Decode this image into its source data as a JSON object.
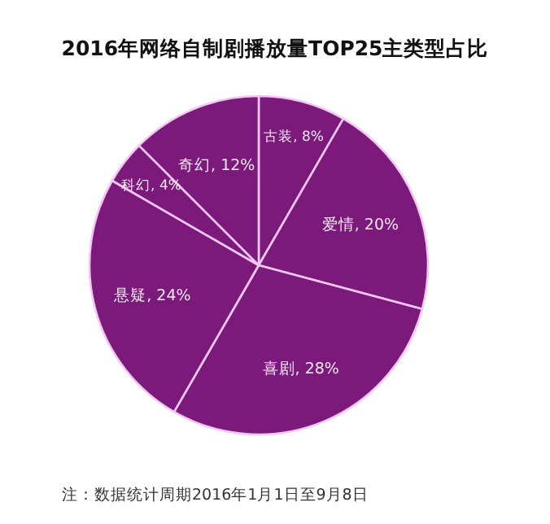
{
  "chart_data": {
    "type": "pie",
    "title": "2016年网络自制剧播放量TOP25主类型占比",
    "categories": [
      "古装",
      "爱情",
      "喜剧",
      "悬疑",
      "科幻",
      "奇幻"
    ],
    "values": [
      8,
      20,
      28,
      24,
      4,
      12
    ],
    "value_labels": [
      ", 8%",
      ", 20%",
      ", 28%",
      ", 24%",
      ", 4%",
      ", 12%"
    ],
    "colors": [
      "#7b1a7b",
      "#7b1a7b",
      "#7b1a7b",
      "#7b1a7b",
      "#7b1a7b",
      "#7b1a7b"
    ],
    "legend": false,
    "annotations": [
      "注：数据统计周期2016年1月1日至9月8日"
    ]
  }
}
